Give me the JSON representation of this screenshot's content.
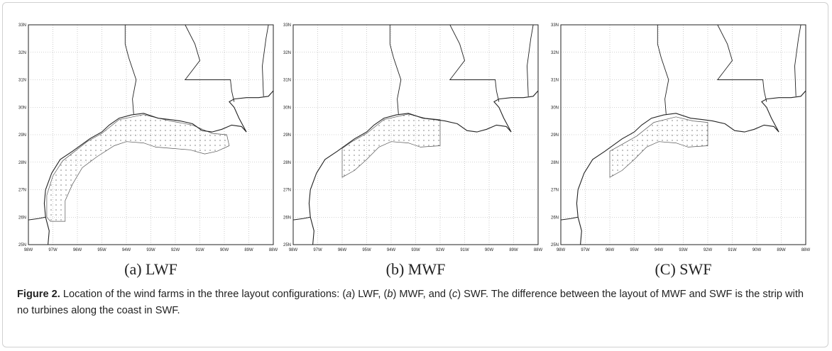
{
  "map_axes": {
    "lat_labels": [
      "33N",
      "32N",
      "31N",
      "30N",
      "29N",
      "28N",
      "27N",
      "26N",
      "25N"
    ],
    "lon_labels": [
      "98W",
      "97W",
      "96W",
      "95W",
      "94W",
      "93W",
      "92W",
      "91W",
      "90W",
      "89W",
      "88W"
    ]
  },
  "panels": [
    {
      "caption": "(a) LWF"
    },
    {
      "caption": "(b) MWF"
    },
    {
      "caption": "(C) SWF"
    }
  ],
  "caption": {
    "label": "Figure 2.",
    "parts": [
      "Location of the wind farms in the three layout configurations: (",
      "a",
      ") LWF, (",
      "b",
      ") MWF, and (",
      "c",
      ") SWF. The difference between the layout of MWF and SWF is the strip with no turbines along the coast in SWF."
    ]
  }
}
